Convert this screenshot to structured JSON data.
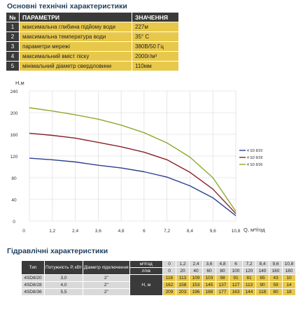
{
  "specs": {
    "title": "Основні технічні характеристики",
    "header": {
      "num": "№",
      "param": "ПАРАМЕТРИ",
      "value": "ЗНАЧЕННЯ"
    },
    "rows": [
      {
        "num": "1",
        "param": "максимальна глибина підйому води",
        "value": "227м"
      },
      {
        "num": "2",
        "param": "максимальна температура води",
        "value": "35° С"
      },
      {
        "num": "3",
        "param": "параметри мережі",
        "value": "380В/50 Гц"
      },
      {
        "num": "4",
        "param": "максимальний вміст піску",
        "value": "2000г/м³"
      },
      {
        "num": "5",
        "param": "мінімальний діаметр свердловини",
        "value": "110мм"
      }
    ]
  },
  "chart_data": {
    "type": "line",
    "ylabel": "H,м",
    "xlabel": "Q, м³/год",
    "xlim": [
      0,
      10.8
    ],
    "ylim": [
      0,
      240
    ],
    "x_ticks": [
      "0",
      "1,2",
      "2,4",
      "3,6",
      "4,8",
      "6",
      "7,2",
      "8,4",
      "9,6",
      "10,8"
    ],
    "y_ticks": [
      "0",
      "40",
      "80",
      "120",
      "160",
      "200",
      "240"
    ],
    "grid": true,
    "legend_position": "right",
    "series": [
      {
        "name": "4 SD 8/20",
        "color": "#2b3f8c",
        "x": [
          0,
          1.2,
          2.4,
          3.6,
          4.8,
          6,
          7.2,
          8.4,
          9.6,
          10.8
        ],
        "values": [
          116,
          113,
          109,
          103,
          98,
          91,
          81,
          65,
          43,
          10
        ]
      },
      {
        "name": "4 SD 8/28",
        "color": "#8c1f2a",
        "x": [
          0,
          1.2,
          2.4,
          3.6,
          4.8,
          6,
          7.2,
          8.4,
          9.6,
          10.8
        ],
        "values": [
          162,
          158,
          153,
          145,
          137,
          127,
          113,
          90,
          59,
          14
        ]
      },
      {
        "name": "4 SD 8/36",
        "color": "#8caa2a",
        "x": [
          0,
          1.2,
          2.4,
          3.6,
          4.8,
          6,
          7.2,
          8.4,
          9.6,
          10.8
        ],
        "values": [
          209,
          203,
          196,
          188,
          177,
          163,
          144,
          118,
          80,
          18
        ]
      }
    ]
  },
  "hydraulic": {
    "title": "Гідравлічні характеристики",
    "head_type": "Тип",
    "head_power": "Потужність Р, кВт",
    "head_diameter": "Діаметр підключення",
    "unit_m3": "м³/год",
    "unit_lmin": "л/хв",
    "unit_h": "Н, м",
    "q_m3": [
      "0",
      "1,2",
      "2,4",
      "3,6",
      "4,8",
      "6",
      "7,2",
      "8,4",
      "9,6",
      "10,8"
    ],
    "q_lmin": [
      "0",
      "20",
      "40",
      "60",
      "80",
      "100",
      "120",
      "140",
      "160",
      "180"
    ],
    "pumps": [
      {
        "type": "4SD8/20",
        "power": "3,0",
        "diameter": "2\"",
        "h": [
          "116",
          "113",
          "109",
          "103",
          "98",
          "91",
          "81",
          "65",
          "43",
          "10"
        ]
      },
      {
        "type": "4SD8/28",
        "power": "4,0",
        "diameter": "2\"",
        "h": [
          "162",
          "158",
          "153",
          "145",
          "137",
          "127",
          "113",
          "90",
          "59",
          "14"
        ]
      },
      {
        "type": "4SD8/36",
        "power": "5,5",
        "diameter": "2\"",
        "h": [
          "209",
          "203",
          "196",
          "188",
          "177",
          "163",
          "144",
          "118",
          "80",
          "18"
        ]
      }
    ]
  }
}
